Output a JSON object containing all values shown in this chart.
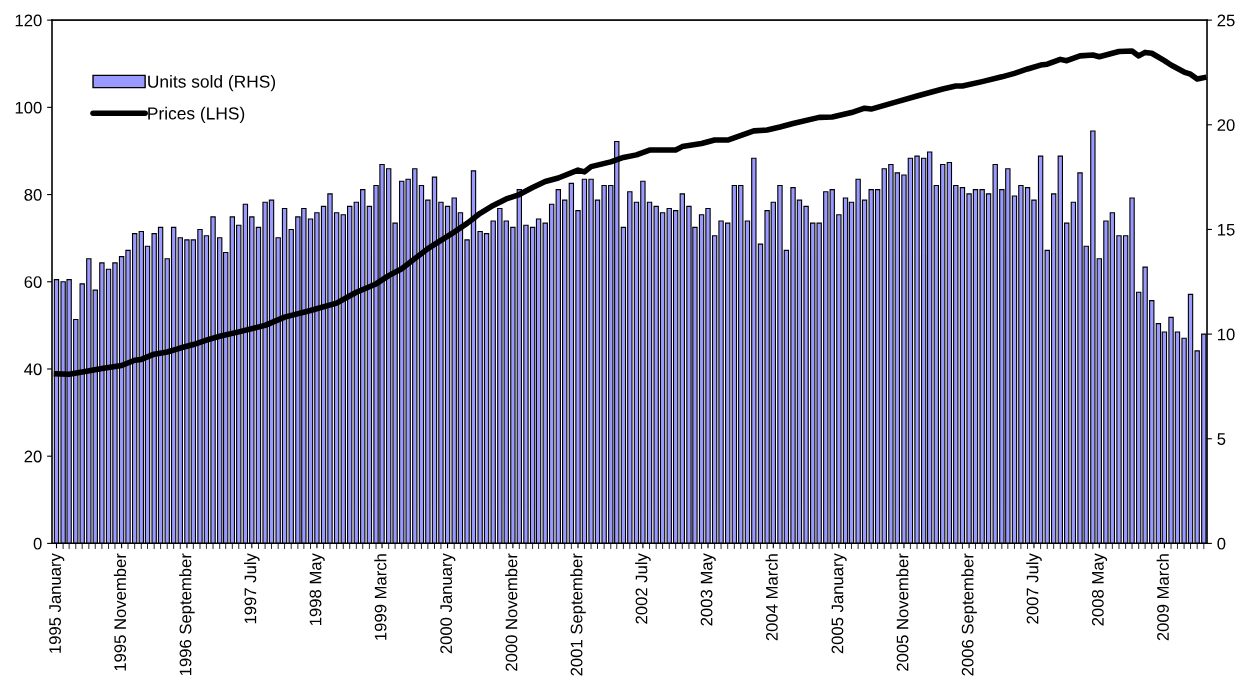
{
  "chart_data": {
    "type": "bar",
    "x": [
      "1995-01",
      "1995-02",
      "1995-03",
      "1995-04",
      "1995-05",
      "1995-06",
      "1995-07",
      "1995-08",
      "1995-09",
      "1995-10",
      "1995-11",
      "1995-12",
      "1996-01",
      "1996-02",
      "1996-03",
      "1996-04",
      "1996-05",
      "1996-06",
      "1996-07",
      "1996-08",
      "1996-09",
      "1996-10",
      "1996-11",
      "1996-12",
      "1997-01",
      "1997-02",
      "1997-03",
      "1997-04",
      "1997-05",
      "1997-06",
      "1997-07",
      "1997-08",
      "1997-09",
      "1997-10",
      "1997-11",
      "1997-12",
      "1998-01",
      "1998-02",
      "1998-03",
      "1998-04",
      "1998-05",
      "1998-06",
      "1998-07",
      "1998-08",
      "1998-09",
      "1998-10",
      "1998-11",
      "1998-12",
      "1999-01",
      "1999-02",
      "1999-03",
      "1999-04",
      "1999-05",
      "1999-06",
      "1999-07",
      "1999-08",
      "1999-09",
      "1999-10",
      "1999-11",
      "1999-12",
      "2000-01",
      "2000-02",
      "2000-03",
      "2000-04",
      "2000-05",
      "2000-06",
      "2000-07",
      "2000-08",
      "2000-09",
      "2000-10",
      "2000-11",
      "2000-12",
      "2001-01",
      "2001-02",
      "2001-03",
      "2001-04",
      "2001-05",
      "2001-06",
      "2001-07",
      "2001-08",
      "2001-09",
      "2001-10",
      "2001-11",
      "2001-12",
      "2002-01",
      "2002-02",
      "2002-03",
      "2002-04",
      "2002-05",
      "2002-06",
      "2002-07",
      "2002-08",
      "2002-09",
      "2002-10",
      "2002-11",
      "2002-12",
      "2003-01",
      "2003-02",
      "2003-03",
      "2003-04",
      "2003-05",
      "2003-06",
      "2003-07",
      "2003-08",
      "2003-09",
      "2003-10",
      "2003-11",
      "2003-12",
      "2004-01",
      "2004-02",
      "2004-03",
      "2004-04",
      "2004-05",
      "2004-06",
      "2004-07",
      "2004-08",
      "2004-09",
      "2004-10",
      "2004-11",
      "2004-12",
      "2005-01",
      "2005-02",
      "2005-03",
      "2005-04",
      "2005-05",
      "2005-06",
      "2005-07",
      "2005-08",
      "2005-09",
      "2005-10",
      "2005-11",
      "2005-12",
      "2006-01",
      "2006-02",
      "2006-03",
      "2006-04",
      "2006-05",
      "2006-06",
      "2006-07",
      "2006-08",
      "2006-09",
      "2006-10",
      "2006-11",
      "2006-12",
      "2007-01",
      "2007-02",
      "2007-03",
      "2007-04",
      "2007-05",
      "2007-06",
      "2007-07",
      "2007-08",
      "2007-09",
      "2007-10",
      "2007-11",
      "2007-12",
      "2008-01",
      "2008-02",
      "2008-03",
      "2008-04",
      "2008-05",
      "2008-06",
      "2008-07",
      "2008-08",
      "2008-09",
      "2008-10",
      "2008-11",
      "2008-12",
      "2009-01",
      "2009-02",
      "2009-03",
      "2009-04",
      "2009-05",
      "2009-06",
      "2009-07",
      "2009-08",
      "2009-09"
    ],
    "xlim": [
      "1994-12-11",
      "2009-09-16"
    ],
    "xticks": [
      {
        "value": "1995-01",
        "label": "1995 January"
      },
      {
        "value": "1995-11",
        "label": "1995 November"
      },
      {
        "value": "1996-09",
        "label": "1996 September"
      },
      {
        "value": "1997-07",
        "label": "1997 July"
      },
      {
        "value": "1998-05",
        "label": "1998 May"
      },
      {
        "value": "1999-03",
        "label": "1999 March"
      },
      {
        "value": "2000-01",
        "label": "2000 January"
      },
      {
        "value": "2000-11",
        "label": "2000 November"
      },
      {
        "value": "2001-09",
        "label": "2001 September"
      },
      {
        "value": "2002-07",
        "label": "2002 July"
      },
      {
        "value": "2003-05",
        "label": "2003 May"
      },
      {
        "value": "2004-03",
        "label": "2004 March"
      },
      {
        "value": "2005-01",
        "label": "2005 January"
      },
      {
        "value": "2005-11",
        "label": "2005 November"
      },
      {
        "value": "2006-09",
        "label": "2006 September"
      },
      {
        "value": "2007-07",
        "label": "2007 July"
      },
      {
        "value": "2008-05",
        "label": "2008 May"
      },
      {
        "value": "2009-03",
        "label": "2009 March"
      }
    ],
    "ylim": [
      0,
      120
    ],
    "yticks": [
      0,
      20,
      40,
      60,
      80,
      100,
      120
    ],
    "y2lim": [
      0,
      25
    ],
    "y2ticks": [
      0,
      5,
      10,
      15,
      20,
      25
    ],
    "grid": false,
    "legend": "top left",
    "series": [
      {
        "name": "Units sold (RHS)",
        "axis": "y2",
        "color": "#9999ff",
        "values": [
          12.6,
          12.5,
          12.6,
          10.7,
          12.4,
          13.6,
          12.1,
          13.4,
          13.1,
          13.4,
          13.7,
          14.0,
          14.8,
          14.9,
          14.2,
          14.8,
          15.1,
          13.6,
          15.1,
          14.6,
          14.5,
          14.5,
          15.0,
          14.7,
          15.6,
          14.6,
          13.9,
          15.6,
          15.2,
          16.2,
          15.6,
          15.1,
          16.3,
          16.4,
          14.6,
          16.0,
          15.0,
          15.6,
          16.0,
          15.5,
          15.8,
          16.1,
          16.7,
          15.8,
          15.7,
          16.1,
          16.3,
          16.9,
          16.1,
          17.1,
          18.1,
          17.9,
          15.3,
          17.3,
          17.4,
          17.9,
          17.1,
          16.4,
          17.5,
          16.3,
          16.1,
          16.5,
          15.8,
          14.5,
          17.8,
          14.9,
          14.8,
          15.4,
          16.0,
          15.4,
          15.1,
          16.9,
          15.2,
          15.1,
          15.5,
          15.3,
          16.2,
          16.9,
          16.4,
          17.2,
          15.9,
          17.4,
          17.4,
          16.4,
          17.1,
          17.1,
          19.2,
          15.1,
          16.8,
          16.3,
          17.3,
          16.3,
          16.1,
          15.8,
          16.0,
          15.9,
          16.7,
          16.1,
          15.1,
          15.7,
          16.0,
          14.7,
          15.4,
          15.3,
          17.1,
          17.1,
          15.4,
          18.4,
          14.3,
          15.9,
          16.3,
          17.1,
          14.0,
          17.0,
          16.4,
          16.1,
          15.3,
          15.3,
          16.8,
          16.9,
          15.7,
          16.5,
          16.3,
          17.4,
          16.4,
          16.9,
          16.9,
          17.9,
          18.1,
          17.7,
          17.6,
          18.4,
          18.5,
          18.4,
          18.7,
          17.1,
          18.1,
          18.2,
          17.1,
          17.0,
          16.7,
          16.9,
          16.9,
          16.7,
          18.1,
          16.9,
          17.9,
          16.6,
          17.1,
          17.0,
          16.4,
          18.5,
          14.0,
          16.7,
          18.5,
          15.3,
          16.3,
          17.7,
          14.2,
          19.7,
          13.6,
          15.4,
          15.8,
          14.7,
          14.7,
          16.5,
          12.0,
          13.2,
          11.6,
          10.5,
          10.1,
          10.8,
          10.1,
          9.8,
          11.9,
          9.2,
          10.0
        ]
      },
      {
        "name": "Prices (LHS)",
        "type": "line",
        "color": "#000000",
        "line_style": "solid",
        "marker": "none",
        "x": [
          "1995-01",
          "1995-03",
          "1995-05",
          "1995-08",
          "1995-11",
          "1996-01",
          "1996-02",
          "1996-04",
          "1996-06",
          "1996-08",
          "1996-10",
          "1996-12",
          "1997-02",
          "1997-05",
          "1997-09",
          "1997-12",
          "1998-04",
          "1998-08",
          "1998-11",
          "1999-02",
          "1999-04",
          "1999-06",
          "1999-08",
          "1999-10",
          "1999-12",
          "2000-02",
          "2000-04",
          "2000-06",
          "2000-08",
          "2000-10",
          "2000-12",
          "2001-02",
          "2001-04",
          "2001-06",
          "2001-09",
          "2001-10",
          "2001-11",
          "2002-02",
          "2002-04",
          "2002-06",
          "2002-08",
          "2002-12",
          "2003-01",
          "2003-04",
          "2003-06",
          "2003-08",
          "2003-12",
          "2004-02",
          "2004-04",
          "2004-06",
          "2004-10",
          "2004-12",
          "2005-03",
          "2005-05",
          "2005-06",
          "2005-10",
          "2006-01",
          "2006-05",
          "2006-07",
          "2006-08",
          "2006-11",
          "2007-02",
          "2007-04",
          "2007-06",
          "2007-08",
          "2007-09",
          "2007-11",
          "2007-12",
          "2008-02",
          "2008-04",
          "2008-05",
          "2008-07",
          "2008-08",
          "2008-10",
          "2008-11",
          "2008-12",
          "2009-01",
          "2009-03",
          "2009-04",
          "2009-06",
          "2009-07",
          "2009-08",
          "2009-09"
        ],
        "values": [
          38.9,
          38.8,
          39.3,
          40.1,
          40.8,
          42.0,
          42.2,
          43.4,
          43.9,
          44.8,
          45.6,
          46.6,
          47.5,
          48.5,
          50.0,
          51.9,
          53.4,
          55.1,
          57.6,
          59.5,
          61.4,
          63.0,
          65.3,
          67.6,
          69.5,
          71.4,
          73.4,
          75.7,
          77.5,
          79.0,
          80.0,
          81.6,
          83.0,
          83.8,
          85.6,
          85.2,
          86.4,
          87.5,
          88.5,
          89.1,
          90.2,
          90.2,
          91.0,
          91.7,
          92.5,
          92.5,
          94.6,
          94.8,
          95.5,
          96.3,
          97.7,
          97.8,
          98.8,
          99.8,
          99.6,
          101.3,
          102.6,
          104.2,
          104.9,
          104.9,
          105.9,
          107.0,
          107.8,
          108.8,
          109.7,
          109.9,
          111.0,
          110.7,
          111.8,
          112.0,
          111.6,
          112.4,
          112.8,
          112.9,
          111.8,
          112.6,
          112.4,
          110.7,
          109.7,
          108.1,
          107.6,
          106.5,
          106.8
        ]
      }
    ]
  }
}
